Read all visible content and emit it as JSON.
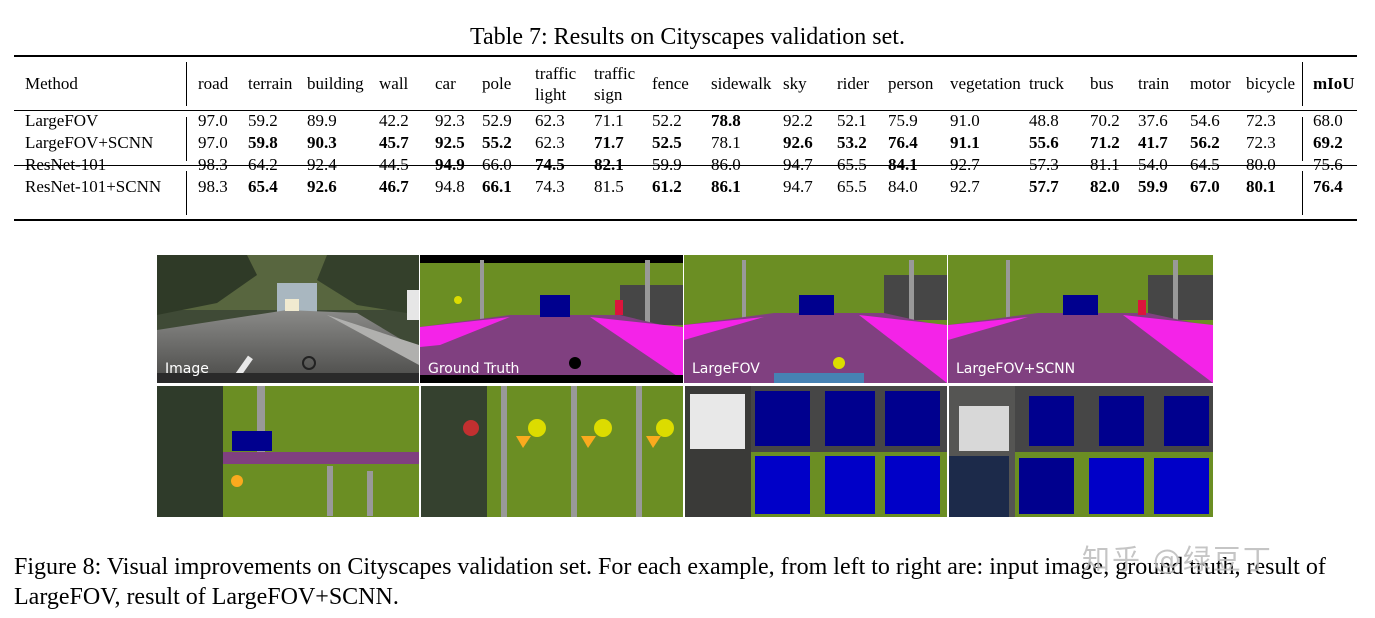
{
  "table_caption": "Table 7: Results on Cityscapes validation set.",
  "columns": [
    {
      "label": "Method"
    },
    {
      "label": "road"
    },
    {
      "label": "terrain"
    },
    {
      "label": "building"
    },
    {
      "label": "wall"
    },
    {
      "label": "car"
    },
    {
      "label": "pole"
    },
    {
      "label": "traffic light",
      "line1": "traffic",
      "line2": "light"
    },
    {
      "label": "traffic sign",
      "line1": "traffic",
      "line2": "sign"
    },
    {
      "label": "fence"
    },
    {
      "label": "sidewalk"
    },
    {
      "label": "sky"
    },
    {
      "label": "rider"
    },
    {
      "label": "person"
    },
    {
      "label": "vegetation"
    },
    {
      "label": "truck"
    },
    {
      "label": "bus"
    },
    {
      "label": "train"
    },
    {
      "label": "motor"
    },
    {
      "label": "bicycle"
    },
    {
      "label": "mIoU",
      "bold": true
    }
  ],
  "groups": [
    {
      "rows": [
        {
          "method": "LargeFOV",
          "values": [
            "97.0",
            "59.2",
            "89.9",
            "42.2",
            "92.3",
            "52.9",
            "62.3",
            "71.1",
            "52.2",
            "78.8",
            "92.2",
            "52.1",
            "75.9",
            "91.0",
            "48.8",
            "70.2",
            "37.6",
            "54.6",
            "72.3",
            "68.0"
          ],
          "bold": [
            false,
            false,
            false,
            false,
            false,
            false,
            false,
            false,
            false,
            true,
            false,
            false,
            false,
            false,
            false,
            false,
            false,
            false,
            false,
            false
          ]
        },
        {
          "method": "LargeFOV+SCNN",
          "values": [
            "97.0",
            "59.8",
            "90.3",
            "45.7",
            "92.5",
            "55.2",
            "62.3",
            "71.7",
            "52.5",
            "78.1",
            "92.6",
            "53.2",
            "76.4",
            "91.1",
            "55.6",
            "71.2",
            "41.7",
            "56.2",
            "72.3",
            "69.2"
          ],
          "bold": [
            false,
            true,
            true,
            true,
            true,
            true,
            false,
            true,
            true,
            false,
            true,
            true,
            true,
            true,
            true,
            true,
            true,
            true,
            false,
            true
          ]
        }
      ]
    },
    {
      "rows": [
        {
          "method": "ResNet-101",
          "values": [
            "98.3",
            "64.2",
            "92.4",
            "44.5",
            "94.9",
            "66.0",
            "74.5",
            "82.1",
            "59.9",
            "86.0",
            "94.7",
            "65.5",
            "84.1",
            "92.7",
            "57.3",
            "81.1",
            "54.0",
            "64.5",
            "80.0",
            "75.6"
          ],
          "bold": [
            false,
            false,
            false,
            false,
            true,
            false,
            true,
            true,
            false,
            false,
            false,
            false,
            true,
            false,
            false,
            false,
            false,
            false,
            false,
            false
          ]
        },
        {
          "method": "ResNet-101+SCNN",
          "values": [
            "98.3",
            "65.4",
            "92.6",
            "46.7",
            "94.8",
            "66.1",
            "74.3",
            "81.5",
            "61.2",
            "86.1",
            "94.7",
            "65.5",
            "84.0",
            "92.7",
            "57.7",
            "82.0",
            "59.9",
            "67.0",
            "80.1",
            "76.4"
          ],
          "bold": [
            false,
            true,
            true,
            true,
            false,
            true,
            false,
            false,
            true,
            true,
            false,
            false,
            false,
            false,
            true,
            true,
            true,
            true,
            true,
            true
          ]
        }
      ]
    }
  ],
  "figure": {
    "panels": [
      {
        "label": "Image"
      },
      {
        "label": "Ground Truth"
      },
      {
        "label": "LargeFOV"
      },
      {
        "label": "LargeFOV+SCNN"
      }
    ],
    "colors": {
      "vegetation": "#6b8e23",
      "road": "#804080",
      "sidewalk": "#f423e8",
      "building": "#464646",
      "car": "#00008e",
      "pole": "#999999",
      "traffic_sign": "#dcdc00",
      "traffic_light": "#faaa1e",
      "sky": "#4682b4",
      "person": "#dc143c",
      "terrain": "#98fb98"
    }
  },
  "figure_caption": "Figure 8: Visual improvements on Cityscapes validation set. For each example, from left to right are: input image, ground truth, result of LargeFOV, result of LargeFOV+SCNN.",
  "watermark": "知乎 @绿豆丁"
}
